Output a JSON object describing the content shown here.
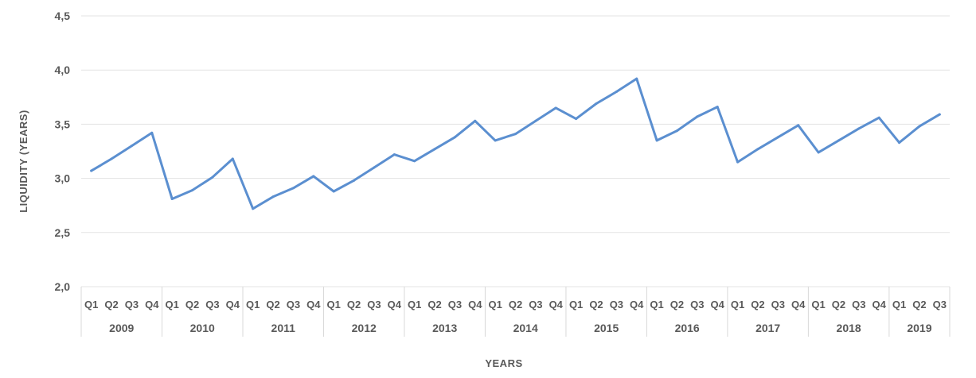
{
  "chart_data": {
    "type": "line",
    "xlabel": "YEARS",
    "ylabel": "LIQUIDITY (YEARS)",
    "ylim": [
      2.0,
      4.5
    ],
    "yticks": [
      "2,0",
      "2,5",
      "3,0",
      "3,5",
      "4,0",
      "4,5"
    ],
    "grid": true,
    "legend": "none",
    "line_color": "#5b8fd0",
    "years": [
      {
        "label": "2009",
        "quarters": [
          "Q1",
          "Q2",
          "Q3",
          "Q4"
        ]
      },
      {
        "label": "2010",
        "quarters": [
          "Q1",
          "Q2",
          "Q3",
          "Q4"
        ]
      },
      {
        "label": "2011",
        "quarters": [
          "Q1",
          "Q2",
          "Q3",
          "Q4"
        ]
      },
      {
        "label": "2012",
        "quarters": [
          "Q1",
          "Q2",
          "Q3",
          "Q4"
        ]
      },
      {
        "label": "2013",
        "quarters": [
          "Q1",
          "Q2",
          "Q3",
          "Q4"
        ]
      },
      {
        "label": "2014",
        "quarters": [
          "Q1",
          "Q2",
          "Q3",
          "Q4"
        ]
      },
      {
        "label": "2015",
        "quarters": [
          "Q1",
          "Q2",
          "Q3",
          "Q4"
        ]
      },
      {
        "label": "2016",
        "quarters": [
          "Q1",
          "Q2",
          "Q3",
          "Q4"
        ]
      },
      {
        "label": "2017",
        "quarters": [
          "Q1",
          "Q2",
          "Q3",
          "Q4"
        ]
      },
      {
        "label": "2018",
        "quarters": [
          "Q1",
          "Q2",
          "Q3",
          "Q4"
        ]
      },
      {
        "label": "2019",
        "quarters": [
          "Q1",
          "Q2",
          "Q3"
        ]
      }
    ],
    "series": [
      {
        "values": [
          3.07,
          3.18,
          3.3,
          3.42,
          2.81,
          2.89,
          3.01,
          3.18,
          2.72,
          2.83,
          2.91,
          3.02,
          2.88,
          2.98,
          3.1,
          3.22,
          3.16,
          3.27,
          3.38,
          3.53,
          3.35,
          3.41,
          3.53,
          3.65,
          3.55,
          3.69,
          3.8,
          3.92,
          3.35,
          3.44,
          3.57,
          3.66,
          3.15,
          3.27,
          3.38,
          3.49,
          3.24,
          3.35,
          3.46,
          3.56,
          3.33,
          3.48,
          3.59
        ]
      }
    ]
  }
}
